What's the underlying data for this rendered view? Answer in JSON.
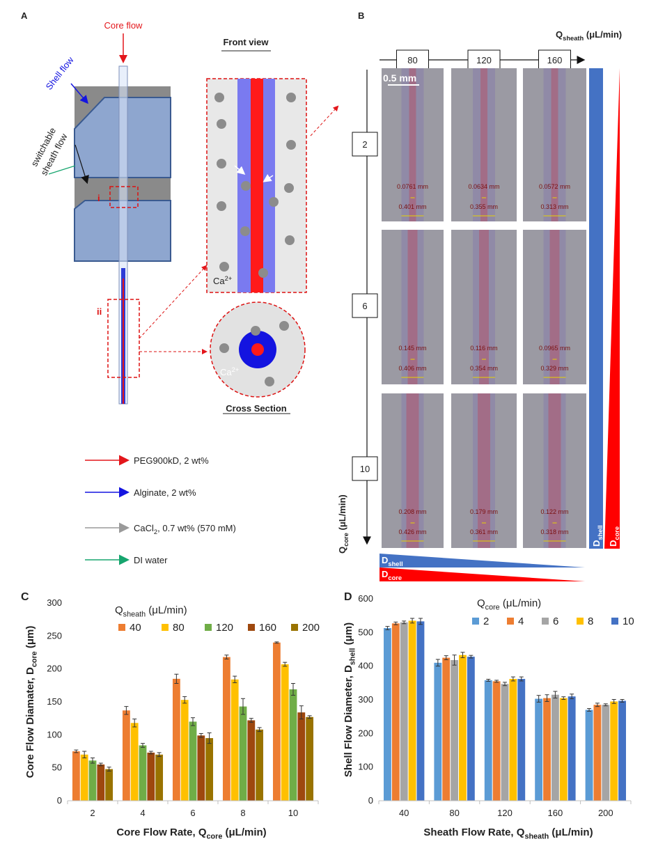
{
  "panel_a": {
    "label": "A",
    "core_flow": "Core flow",
    "shell_flow": "Shell flow",
    "sheath_flow": [
      "switchable",
      "sheath flow"
    ],
    "region_i": "i",
    "region_ii": "ii",
    "front_view": "Front view",
    "cross_section": "Cross Section",
    "ca_front": [
      "Ca",
      "2+"
    ],
    "ca_cross": [
      "Ca",
      "2+"
    ],
    "legend": [
      {
        "parts": [
          "PEG900kD, 2 wt%"
        ],
        "color": "#e3161b"
      },
      {
        "parts": [
          "Alginate, 2 wt%"
        ],
        "color": "#1414e0"
      },
      {
        "parts": [
          "CaCl",
          "2",
          ", 0.7 wt% (570 mM)"
        ],
        "color": "#9a9a9a"
      },
      {
        "parts": [
          "DI water"
        ],
        "color": "#16a56e"
      }
    ]
  },
  "panel_b": {
    "label": "B",
    "q_sheath": [
      "Q",
      "sheath",
      " (μL/min)"
    ],
    "columns": [
      "80",
      "120",
      "160"
    ],
    "rows": [
      "2",
      "6",
      "10"
    ],
    "scale_bar": "0.5 mm",
    "images": [
      [
        {
          "core": "0.0761 mm",
          "shell": "0.401 mm"
        },
        {
          "core": "0.0634 mm",
          "shell": "0.355 mm"
        },
        {
          "core": "0.0572 mm",
          "shell": "0.313 mm"
        }
      ],
      [
        {
          "core": "0.145 mm",
          "shell": "0.406 mm"
        },
        {
          "core": "0.116 mm",
          "shell": "0.354 mm"
        },
        {
          "core": "0.0965 mm",
          "shell": "0.329 mm"
        }
      ],
      [
        {
          "core": "0.208 mm",
          "shell": "0.426 mm"
        },
        {
          "core": "0.179 mm",
          "shell": "0.361 mm"
        },
        {
          "core": "0.122 mm",
          "shell": "0.318 mm"
        }
      ]
    ],
    "q_core": [
      "Q",
      "core",
      " (μL/min)"
    ],
    "d_shell": [
      "D",
      "shell"
    ],
    "d_core": [
      "D",
      "core"
    ]
  },
  "chart_data": [
    {
      "type": "bar",
      "panel": "C",
      "legend_title": [
        "Q",
        "sheath",
        " (μL/min)"
      ],
      "x_label": [
        "Core Flow Rate, Q",
        "core",
        " (μL/min)"
      ],
      "y_label": [
        "Core Flow Diamater, D",
        "core",
        " (μm)"
      ],
      "categories": [
        "2",
        "4",
        "6",
        "8",
        "10"
      ],
      "ylim": [
        0,
        300
      ],
      "yticks": [
        0,
        50,
        100,
        150,
        200,
        250,
        300
      ],
      "grid": false,
      "series": [
        {
          "name": "40",
          "color": "#ed7d31",
          "values": [
            75,
            137,
            185,
            218,
            240
          ],
          "errors": [
            2,
            6,
            7,
            3,
            1
          ]
        },
        {
          "name": "80",
          "color": "#ffc000",
          "values": [
            70,
            118,
            153,
            184,
            207
          ],
          "errors": [
            5,
            6,
            5,
            5,
            3
          ]
        },
        {
          "name": "120",
          "color": "#70ad47",
          "values": [
            61,
            84,
            120,
            143,
            169
          ],
          "errors": [
            4,
            3,
            6,
            12,
            9
          ]
        },
        {
          "name": "160",
          "color": "#9e480e",
          "values": [
            55,
            73,
            99,
            122,
            134
          ],
          "errors": [
            2,
            2,
            3,
            3,
            10
          ]
        },
        {
          "name": "200",
          "color": "#997300",
          "values": [
            48,
            70,
            95,
            108,
            127
          ],
          "errors": [
            3,
            3,
            8,
            3,
            2
          ]
        }
      ]
    },
    {
      "type": "bar",
      "panel": "D",
      "legend_title": [
        "Q",
        "core",
        " (μL/min)"
      ],
      "x_label": [
        "Sheath Flow Rate, Q",
        "sheath",
        " (μL/min)"
      ],
      "y_label": [
        "Shell Flow Diameter, D",
        "shell",
        " (μm)"
      ],
      "categories": [
        "40",
        "80",
        "120",
        "160",
        "200"
      ],
      "ylim": [
        0,
        600
      ],
      "yticks": [
        0,
        100,
        200,
        300,
        400,
        500,
        600
      ],
      "grid": false,
      "series": [
        {
          "name": "2",
          "color": "#5b9bd5",
          "values": [
            513,
            410,
            358,
            303,
            270
          ],
          "errors": [
            5,
            10,
            3,
            10,
            4
          ]
        },
        {
          "name": "4",
          "color": "#ed7d31",
          "values": [
            527,
            425,
            355,
            305,
            285
          ],
          "errors": [
            4,
            6,
            3,
            10,
            5
          ]
        },
        {
          "name": "6",
          "color": "#a5a5a5",
          "values": [
            530,
            418,
            347,
            315,
            285
          ],
          "errors": [
            4,
            15,
            5,
            10,
            3
          ]
        },
        {
          "name": "8",
          "color": "#ffc000",
          "values": [
            535,
            433,
            362,
            305,
            295
          ],
          "errors": [
            7,
            8,
            6,
            4,
            6
          ]
        },
        {
          "name": "10",
          "color": "#4472c4",
          "values": [
            533,
            428,
            362,
            310,
            297
          ],
          "errors": [
            9,
            4,
            6,
            7,
            4
          ]
        }
      ]
    }
  ]
}
